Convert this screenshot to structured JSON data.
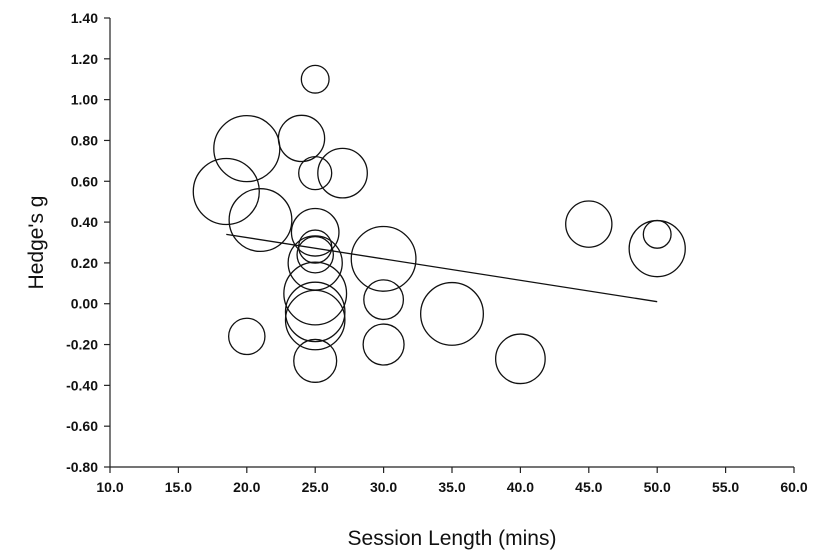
{
  "chart_data": {
    "type": "scatter",
    "title": "",
    "xlabel": "Session Length (mins)",
    "ylabel": "Hedge's g",
    "xlim": [
      10.0,
      60.0
    ],
    "ylim": [
      -0.8,
      1.4
    ],
    "x_ticks": [
      10.0,
      15.0,
      20.0,
      25.0,
      30.0,
      35.0,
      40.0,
      45.0,
      50.0,
      55.0,
      60.0
    ],
    "x_tick_labels": [
      "10.0",
      "15.0",
      "20.0",
      "25.0",
      "30.0",
      "35.0",
      "40.0",
      "45.0",
      "50.0",
      "55.0",
      "60.0"
    ],
    "y_ticks": [
      1.4,
      1.2,
      1.0,
      0.8,
      0.6,
      0.4,
      0.2,
      0.0,
      -0.2,
      -0.4,
      -0.6,
      -0.8
    ],
    "y_tick_labels": [
      "1.40",
      "1.20",
      "1.00",
      "0.80",
      "0.60",
      "0.40",
      "0.20",
      "0.00",
      "-0.20",
      "-0.40",
      "-0.60",
      "-0.80"
    ],
    "grid": false,
    "legend": "none",
    "marker": "open-circle",
    "marker_size_encodes": "study weight",
    "points": [
      {
        "x": 25.0,
        "y": 1.1,
        "size": 0.42
      },
      {
        "x": 24.0,
        "y": 0.81,
        "size": 0.7
      },
      {
        "x": 20.0,
        "y": 0.76,
        "size": 1.0
      },
      {
        "x": 25.0,
        "y": 0.64,
        "size": 0.5
      },
      {
        "x": 27.0,
        "y": 0.64,
        "size": 0.75
      },
      {
        "x": 18.5,
        "y": 0.55,
        "size": 1.0
      },
      {
        "x": 21.0,
        "y": 0.41,
        "size": 0.95
      },
      {
        "x": 25.0,
        "y": 0.35,
        "size": 0.72
      },
      {
        "x": 25.0,
        "y": 0.28,
        "size": 0.5
      },
      {
        "x": 25.0,
        "y": 0.24,
        "size": 0.55
      },
      {
        "x": 25.0,
        "y": 0.2,
        "size": 0.82
      },
      {
        "x": 30.0,
        "y": 0.22,
        "size": 0.98
      },
      {
        "x": 25.0,
        "y": 0.05,
        "size": 0.95
      },
      {
        "x": 25.0,
        "y": -0.04,
        "size": 0.9
      },
      {
        "x": 25.0,
        "y": -0.08,
        "size": 0.9
      },
      {
        "x": 30.0,
        "y": 0.02,
        "size": 0.6
      },
      {
        "x": 35.0,
        "y": -0.05,
        "size": 0.95
      },
      {
        "x": 20.0,
        "y": -0.16,
        "size": 0.55
      },
      {
        "x": 30.0,
        "y": -0.2,
        "size": 0.62
      },
      {
        "x": 25.0,
        "y": -0.28,
        "size": 0.65
      },
      {
        "x": 40.0,
        "y": -0.27,
        "size": 0.75
      },
      {
        "x": 45.0,
        "y": 0.39,
        "size": 0.7
      },
      {
        "x": 50.0,
        "y": 0.27,
        "size": 0.85
      },
      {
        "x": 50.0,
        "y": 0.34,
        "size": 0.42
      }
    ],
    "trend_line": {
      "x": [
        18.5,
        50.0
      ],
      "y": [
        0.34,
        0.01
      ]
    }
  }
}
